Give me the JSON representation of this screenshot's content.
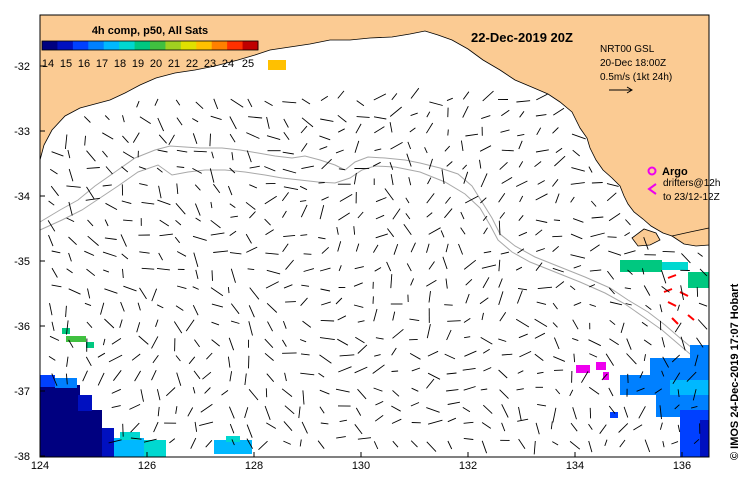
{
  "title": "22-Dec-2019 20Z",
  "colorbar": {
    "label": "4h comp, p50, All Sats",
    "ticks": [
      "14",
      "15",
      "16",
      "17",
      "18",
      "19",
      "20",
      "21",
      "22",
      "23",
      "24",
      "25"
    ],
    "colors": [
      "#000080",
      "#0010c0",
      "#0040ff",
      "#0080ff",
      "#00b8ff",
      "#00d8d0",
      "#00c880",
      "#40c040",
      "#a0d020",
      "#e0e000",
      "#ffc000",
      "#ff8000",
      "#ff3000",
      "#c00000"
    ]
  },
  "legend": {
    "line1": "NRT00 GSL",
    "line2": "20-Dec 18:00Z",
    "line3": "0.5m/s (1kt 24h)"
  },
  "argo": {
    "label": "Argo",
    "drifters_line1": "drifters@12h",
    "drifters_line2": "to 23/12-12Z"
  },
  "credit": "© IMOS 24-Dec-2019 17:07 Hobart",
  "axes": {
    "x_ticks": [
      "124",
      "126",
      "128",
      "130",
      "132",
      "134",
      "136"
    ],
    "y_ticks": [
      "-32",
      "-33",
      "-34",
      "-35",
      "-36",
      "-37",
      "-38"
    ],
    "lon_range": [
      124,
      136.5
    ],
    "lat_range": [
      -38.1,
      -31.3
    ]
  },
  "colors": {
    "land": "#fbcb93",
    "ocean": "#ffffff",
    "bathy": "#a8a8a8",
    "argo": "#ee00ee",
    "drifter": "#ee00ee"
  }
}
